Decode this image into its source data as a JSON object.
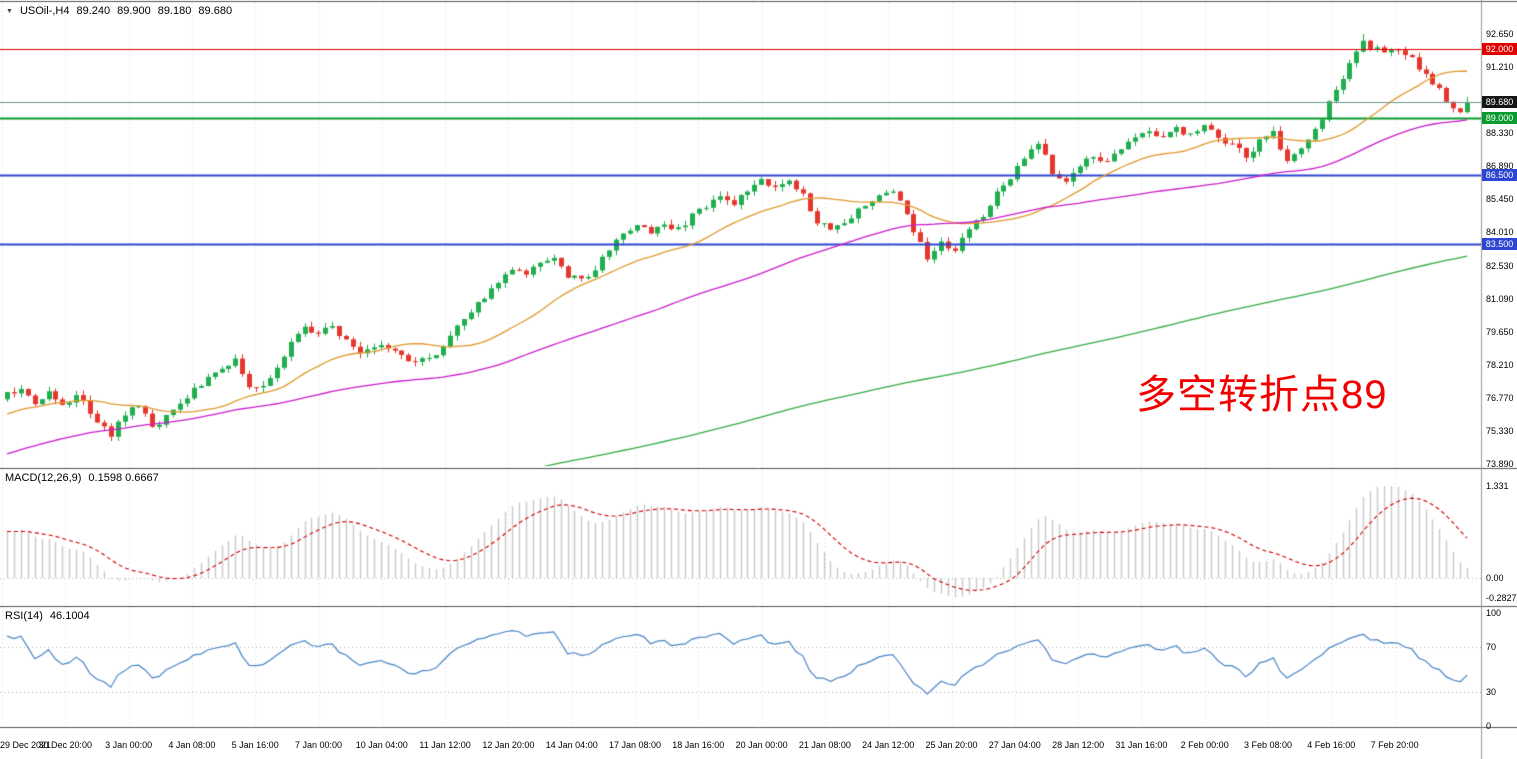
{
  "header": {
    "collapse_icon": "▼",
    "symbol": "USOil-,H4",
    "open": "89.240",
    "high": "89.900",
    "low": "89.180",
    "close": "89.680"
  },
  "chart_data": [
    {
      "type": "candlestick",
      "symbol": "USOil-",
      "timeframe": "H4",
      "ylim": [
        73.89,
        92.65
      ],
      "price_axis": {
        "ticks": [
          "92.650",
          "91.210",
          "88.330",
          "86.890",
          "85.450",
          "84.010",
          "82.530",
          "81.090",
          "79.650",
          "78.210",
          "76.770",
          "75.330",
          "73.890"
        ]
      },
      "hlines": [
        {
          "price": 92.0,
          "label": "92.000",
          "color": "#e10000",
          "width": 1.2
        },
        {
          "price": 89.0,
          "label": "89.000",
          "color": "#0a9b2f",
          "width": 1.8
        },
        {
          "price": 86.5,
          "label": "86.500",
          "color": "#2d46d2",
          "width": 1.8
        },
        {
          "price": 83.5,
          "label": "83.500",
          "color": "#2d46d2",
          "width": 1.8
        }
      ],
      "price_line": {
        "value": 89.68,
        "label": "89.680",
        "line_color": "#6f9494",
        "badge_color": "#151515"
      },
      "last_bar_ohlc": [
        89.24,
        89.9,
        89.18,
        89.68
      ],
      "peak_high": 92.65,
      "annotation": {
        "text": "多空转折点89",
        "color": "#f20000"
      },
      "x_labels": [
        "29 Dec 2021",
        "30 Dec 20:00",
        "3 Jan 00:00",
        "4 Jan 08:00",
        "5 Jan 16:00",
        "7 Jan 00:00",
        "10 Jan 04:00",
        "11 Jan 12:00",
        "12 Jan 20:00",
        "14 Jan 04:00",
        "17 Jan 08:00",
        "18 Jan 16:00",
        "20 Jan 00:00",
        "21 Jan 08:00",
        "24 Jan 12:00",
        "25 Jan 20:00",
        "27 Jan 04:00",
        "28 Jan 12:00",
        "31 Jan 16:00",
        "2 Feb 00:00",
        "3 Feb 08:00",
        "4 Feb 16:00",
        "7 Feb 20:00"
      ],
      "close_waypoints": [
        [
          0,
          76.9
        ],
        [
          2,
          77.2
        ],
        [
          4,
          76.6
        ],
        [
          6,
          77.0
        ],
        [
          8,
          76.5
        ],
        [
          10,
          76.9
        ],
        [
          11,
          76.6
        ],
        [
          13,
          75.6
        ],
        [
          15,
          75.2
        ],
        [
          17,
          76.1
        ],
        [
          19,
          76.4
        ],
        [
          21,
          75.5
        ],
        [
          23,
          75.9
        ],
        [
          25,
          76.5
        ],
        [
          27,
          77.1
        ],
        [
          29,
          77.6
        ],
        [
          31,
          78.0
        ],
        [
          33,
          78.5
        ],
        [
          35,
          77.2
        ],
        [
          37,
          77.3
        ],
        [
          39,
          78.2
        ],
        [
          41,
          79.2
        ],
        [
          43,
          79.9
        ],
        [
          45,
          79.6
        ],
        [
          47,
          79.9
        ],
        [
          49,
          79.2
        ],
        [
          51,
          78.7
        ],
        [
          53,
          79.1
        ],
        [
          55,
          78.9
        ],
        [
          57,
          78.7
        ],
        [
          59,
          78.3
        ],
        [
          61,
          78.5
        ],
        [
          63,
          78.9
        ],
        [
          65,
          79.8
        ],
        [
          67,
          80.6
        ],
        [
          69,
          81.2
        ],
        [
          71,
          81.8
        ],
        [
          73,
          82.4
        ],
        [
          75,
          82.2
        ],
        [
          77,
          82.7
        ],
        [
          79,
          82.9
        ],
        [
          81,
          82.1
        ],
        [
          83,
          81.9
        ],
        [
          85,
          82.3
        ],
        [
          87,
          83.3
        ],
        [
          89,
          84.0
        ],
        [
          91,
          84.3
        ],
        [
          93,
          83.9
        ],
        [
          95,
          84.4
        ],
        [
          97,
          84.1
        ],
        [
          99,
          84.7
        ],
        [
          101,
          85.2
        ],
        [
          103,
          85.5
        ],
        [
          105,
          85.3
        ],
        [
          107,
          85.8
        ],
        [
          109,
          86.3
        ],
        [
          111,
          86.0
        ],
        [
          113,
          86.3
        ],
        [
          115,
          85.6
        ],
        [
          117,
          84.5
        ],
        [
          119,
          84.1
        ],
        [
          121,
          84.4
        ],
        [
          123,
          84.9
        ],
        [
          125,
          85.4
        ],
        [
          127,
          85.8
        ],
        [
          129,
          85.5
        ],
        [
          131,
          84.0
        ],
        [
          133,
          82.9
        ],
        [
          135,
          83.6
        ],
        [
          137,
          83.2
        ],
        [
          139,
          84.2
        ],
        [
          141,
          84.8
        ],
        [
          143,
          85.7
        ],
        [
          145,
          86.4
        ],
        [
          147,
          87.2
        ],
        [
          149,
          87.9
        ],
        [
          151,
          86.6
        ],
        [
          153,
          86.3
        ],
        [
          155,
          86.9
        ],
        [
          157,
          87.3
        ],
        [
          159,
          87.0
        ],
        [
          161,
          87.6
        ],
        [
          163,
          88.1
        ],
        [
          165,
          88.4
        ],
        [
          167,
          88.2
        ],
        [
          169,
          88.5
        ],
        [
          171,
          88.3
        ],
        [
          173,
          88.6
        ],
        [
          175,
          88.2
        ],
        [
          177,
          87.8
        ],
        [
          179,
          87.3
        ],
        [
          181,
          88.0
        ],
        [
          183,
          88.4
        ],
        [
          185,
          87.1
        ],
        [
          187,
          87.6
        ],
        [
          189,
          88.5
        ],
        [
          191,
          89.6
        ],
        [
          193,
          90.8
        ],
        [
          195,
          91.9
        ],
        [
          196,
          92.4
        ],
        [
          197,
          92.1
        ],
        [
          199,
          91.8
        ],
        [
          201,
          92.0
        ],
        [
          203,
          91.5
        ],
        [
          205,
          90.8
        ],
        [
          207,
          90.2
        ],
        [
          209,
          89.4
        ],
        [
          210,
          89.24
        ],
        [
          211,
          89.68
        ]
      ],
      "history_waypoints": [
        [
          -230,
          69.0
        ],
        [
          -215,
          66.5
        ],
        [
          -200,
          67.0
        ],
        [
          -185,
          66.0
        ],
        [
          -170,
          68.5
        ],
        [
          -160,
          67.3
        ],
        [
          -150,
          68.2
        ],
        [
          -140,
          69.5
        ],
        [
          -130,
          68.0
        ],
        [
          -120,
          66.6
        ],
        [
          -110,
          69.0
        ],
        [
          -100,
          70.6
        ],
        [
          -90,
          69.6
        ],
        [
          -80,
          71.2
        ],
        [
          -70,
          72.2
        ],
        [
          -60,
          71.2
        ],
        [
          -50,
          72.6
        ],
        [
          -40,
          73.6
        ],
        [
          -30,
          74.2
        ],
        [
          -20,
          75.2
        ],
        [
          -10,
          76.1
        ],
        [
          -1,
          76.7
        ]
      ],
      "moving_averages": [
        {
          "name": "ma-fast",
          "period": 20,
          "color": "#e09a2e"
        },
        {
          "name": "ma-mid",
          "period": 60,
          "color": "#cc1fcc"
        },
        {
          "name": "ma-slow",
          "period": 230,
          "color": "#35ad45"
        }
      ],
      "colors": {
        "up": "#1fae4e",
        "down": "#e6352c",
        "grid": "rgba(0,0,0,0.14)"
      }
    },
    {
      "type": "macd",
      "label": "MACD(12,26,9)",
      "current": "0.1598 0.6667",
      "fast": 12,
      "slow": 26,
      "signal": 9,
      "y_ticks": [
        "1.331",
        "0.00",
        "-0.2827"
      ],
      "hist_color": "#c9c9c9",
      "signal_color": "#d40000"
    },
    {
      "type": "rsi",
      "label": "RSI(14)",
      "current": "46.1004",
      "period": 14,
      "levels": [
        70,
        30
      ],
      "y_ticks": [
        "100",
        "70",
        "30",
        "0"
      ],
      "line_color": "#4a86c8"
    }
  ]
}
